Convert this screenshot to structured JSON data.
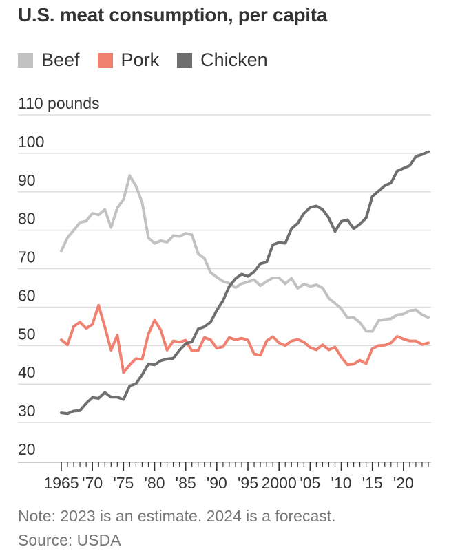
{
  "title": "U.S. meat consumption, per capita",
  "legend": [
    {
      "label": "Beef",
      "color": "#c2c2c2"
    },
    {
      "label": "Pork",
      "color": "#f08070"
    },
    {
      "label": "Chicken",
      "color": "#6e6e6e"
    }
  ],
  "note": "Note: 2023 is an estimate. 2024 is a forecast.",
  "source": "Source: USDA",
  "chart_data": {
    "type": "line",
    "title": "U.S. meat consumption, per capita",
    "ylabel": "",
    "xlabel": "",
    "ylim": [
      20,
      110
    ],
    "xlim": [
      1965,
      2024
    ],
    "grid": true,
    "legend_position": "top-left",
    "y_ticks": [
      {
        "value": 110,
        "label": "110 pounds"
      },
      {
        "value": 100,
        "label": "100"
      },
      {
        "value": 90,
        "label": "90"
      },
      {
        "value": 80,
        "label": "80"
      },
      {
        "value": 70,
        "label": "70"
      },
      {
        "value": 60,
        "label": "60"
      },
      {
        "value": 50,
        "label": "50"
      },
      {
        "value": 40,
        "label": "40"
      },
      {
        "value": 30,
        "label": "30"
      },
      {
        "value": 20,
        "label": "20"
      }
    ],
    "x_ticks": [
      {
        "value": 1965,
        "label": "1965"
      },
      {
        "value": 1970,
        "label": "'70"
      },
      {
        "value": 1975,
        "label": "'75"
      },
      {
        "value": 1980,
        "label": "'80"
      },
      {
        "value": 1985,
        "label": "'85"
      },
      {
        "value": 1990,
        "label": "'90"
      },
      {
        "value": 1995,
        "label": "'95"
      },
      {
        "value": 2000,
        "label": "2000"
      },
      {
        "value": 2005,
        "label": "'05"
      },
      {
        "value": 2010,
        "label": "'10"
      },
      {
        "value": 2015,
        "label": "'15"
      },
      {
        "value": 2020,
        "label": "'20"
      }
    ],
    "x": [
      1965,
      1966,
      1967,
      1968,
      1969,
      1970,
      1971,
      1972,
      1973,
      1974,
      1975,
      1976,
      1977,
      1978,
      1979,
      1980,
      1981,
      1982,
      1983,
      1984,
      1985,
      1986,
      1987,
      1988,
      1989,
      1990,
      1991,
      1992,
      1993,
      1994,
      1995,
      1996,
      1997,
      1998,
      1999,
      2000,
      2001,
      2002,
      2003,
      2004,
      2005,
      2006,
      2007,
      2008,
      2009,
      2010,
      2011,
      2012,
      2013,
      2014,
      2015,
      2016,
      2017,
      2018,
      2019,
      2020,
      2021,
      2022,
      2023,
      2024
    ],
    "series": [
      {
        "name": "Beef",
        "color": "#c2c2c2",
        "values": [
          74.6,
          78.1,
          80.0,
          82.0,
          82.4,
          84.4,
          84.0,
          85.4,
          80.7,
          85.8,
          88.0,
          94.2,
          91.5,
          87.2,
          78.0,
          76.6,
          77.3,
          76.9,
          78.6,
          78.4,
          79.2,
          78.8,
          73.9,
          72.7,
          69.0,
          67.8,
          66.7,
          66.2,
          65.1,
          66.1,
          66.6,
          67.1,
          65.6,
          66.7,
          67.6,
          67.6,
          66.1,
          67.5,
          64.9,
          66.0,
          65.4,
          65.8,
          65.0,
          62.3,
          61.0,
          59.6,
          57.2,
          57.3,
          56.0,
          53.8,
          53.7,
          56.5,
          56.8,
          57.0,
          58.0,
          58.2,
          59.1,
          59.3,
          58.0,
          57.3
        ]
      },
      {
        "name": "Pork",
        "color": "#f08070",
        "values": [
          51.5,
          50.2,
          55.0,
          56.1,
          54.5,
          55.5,
          60.5,
          54.8,
          48.8,
          52.7,
          43.0,
          45.0,
          46.6,
          46.4,
          53.0,
          56.6,
          54.0,
          48.8,
          51.2,
          50.9,
          51.4,
          48.6,
          48.7,
          52.1,
          51.5,
          49.3,
          49.7,
          52.1,
          51.5,
          51.9,
          51.4,
          47.8,
          47.5,
          51.2,
          52.3,
          50.7,
          50.0,
          51.2,
          51.6,
          50.9,
          49.5,
          48.9,
          50.2,
          48.9,
          49.6,
          47.0,
          45.0,
          45.2,
          46.2,
          45.3,
          49.2,
          50.0,
          50.1,
          50.7,
          52.4,
          51.7,
          51.2,
          51.2,
          50.3,
          50.7
        ]
      },
      {
        "name": "Chicken",
        "color": "#6e6e6e",
        "values": [
          32.5,
          32.3,
          33.0,
          33.1,
          35.0,
          36.5,
          36.3,
          37.8,
          36.6,
          36.6,
          36.0,
          39.5,
          40.1,
          42.4,
          45.2,
          45.0,
          46.1,
          46.5,
          46.7,
          48.8,
          50.5,
          51.0,
          54.3,
          54.9,
          56.1,
          59.2,
          61.7,
          65.4,
          67.4,
          68.6,
          68.0,
          69.2,
          71.3,
          71.7,
          76.2,
          76.8,
          76.6,
          80.4,
          81.8,
          84.4,
          85.9,
          86.3,
          85.4,
          83.2,
          79.7,
          82.3,
          82.7,
          80.4,
          81.6,
          83.2,
          88.8,
          90.2,
          91.6,
          92.3,
          95.4,
          96.1,
          96.8,
          99.2,
          99.7,
          100.4
        ]
      }
    ]
  }
}
